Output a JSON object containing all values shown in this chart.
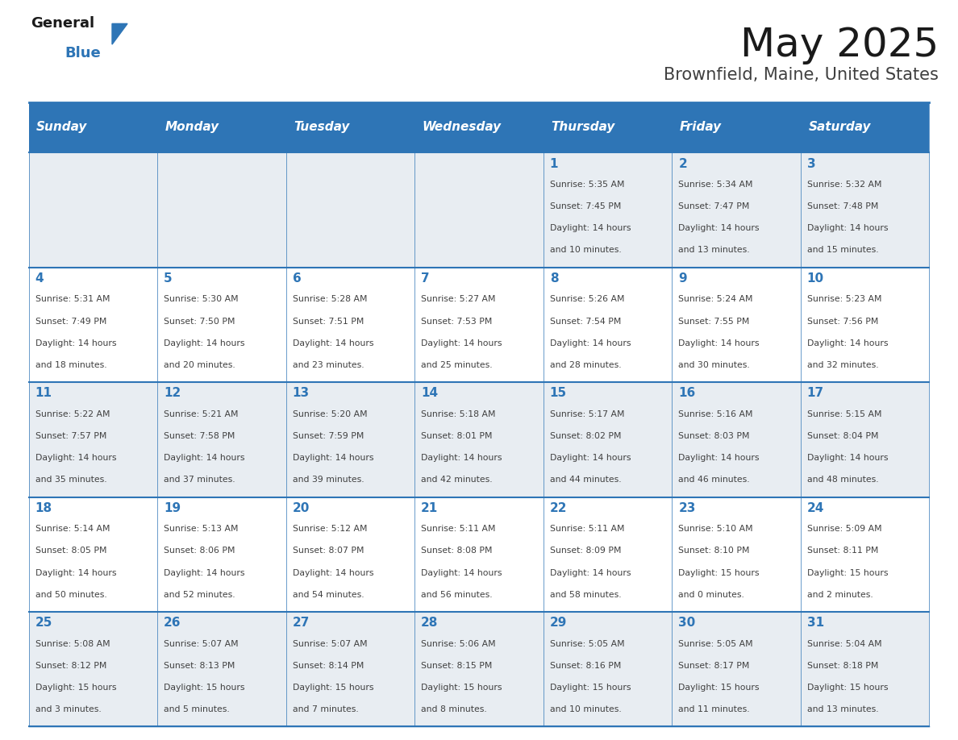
{
  "title": "May 2025",
  "subtitle": "Brownfield, Maine, United States",
  "days_of_week": [
    "Sunday",
    "Monday",
    "Tuesday",
    "Wednesday",
    "Thursday",
    "Friday",
    "Saturday"
  ],
  "header_bg": "#2E75B6",
  "header_text": "#FFFFFF",
  "row1_bg": "#E8EDF2",
  "row2_bg": "#FFFFFF",
  "cell_border": "#2E75B6",
  "day_number_color": "#2E75B6",
  "info_text_color": "#404040",
  "title_color": "#1a1a1a",
  "subtitle_color": "#404040",
  "logo_general_color": "#1a1a1a",
  "logo_blue_color": "#2E75B6",
  "weeks": [
    {
      "days": [
        {
          "day": "",
          "info": ""
        },
        {
          "day": "",
          "info": ""
        },
        {
          "day": "",
          "info": ""
        },
        {
          "day": "",
          "info": ""
        },
        {
          "day": "1",
          "info": "Sunrise: 5:35 AM\nSunset: 7:45 PM\nDaylight: 14 hours\nand 10 minutes."
        },
        {
          "day": "2",
          "info": "Sunrise: 5:34 AM\nSunset: 7:47 PM\nDaylight: 14 hours\nand 13 minutes."
        },
        {
          "day": "3",
          "info": "Sunrise: 5:32 AM\nSunset: 7:48 PM\nDaylight: 14 hours\nand 15 minutes."
        }
      ]
    },
    {
      "days": [
        {
          "day": "4",
          "info": "Sunrise: 5:31 AM\nSunset: 7:49 PM\nDaylight: 14 hours\nand 18 minutes."
        },
        {
          "day": "5",
          "info": "Sunrise: 5:30 AM\nSunset: 7:50 PM\nDaylight: 14 hours\nand 20 minutes."
        },
        {
          "day": "6",
          "info": "Sunrise: 5:28 AM\nSunset: 7:51 PM\nDaylight: 14 hours\nand 23 minutes."
        },
        {
          "day": "7",
          "info": "Sunrise: 5:27 AM\nSunset: 7:53 PM\nDaylight: 14 hours\nand 25 minutes."
        },
        {
          "day": "8",
          "info": "Sunrise: 5:26 AM\nSunset: 7:54 PM\nDaylight: 14 hours\nand 28 minutes."
        },
        {
          "day": "9",
          "info": "Sunrise: 5:24 AM\nSunset: 7:55 PM\nDaylight: 14 hours\nand 30 minutes."
        },
        {
          "day": "10",
          "info": "Sunrise: 5:23 AM\nSunset: 7:56 PM\nDaylight: 14 hours\nand 32 minutes."
        }
      ]
    },
    {
      "days": [
        {
          "day": "11",
          "info": "Sunrise: 5:22 AM\nSunset: 7:57 PM\nDaylight: 14 hours\nand 35 minutes."
        },
        {
          "day": "12",
          "info": "Sunrise: 5:21 AM\nSunset: 7:58 PM\nDaylight: 14 hours\nand 37 minutes."
        },
        {
          "day": "13",
          "info": "Sunrise: 5:20 AM\nSunset: 7:59 PM\nDaylight: 14 hours\nand 39 minutes."
        },
        {
          "day": "14",
          "info": "Sunrise: 5:18 AM\nSunset: 8:01 PM\nDaylight: 14 hours\nand 42 minutes."
        },
        {
          "day": "15",
          "info": "Sunrise: 5:17 AM\nSunset: 8:02 PM\nDaylight: 14 hours\nand 44 minutes."
        },
        {
          "day": "16",
          "info": "Sunrise: 5:16 AM\nSunset: 8:03 PM\nDaylight: 14 hours\nand 46 minutes."
        },
        {
          "day": "17",
          "info": "Sunrise: 5:15 AM\nSunset: 8:04 PM\nDaylight: 14 hours\nand 48 minutes."
        }
      ]
    },
    {
      "days": [
        {
          "day": "18",
          "info": "Sunrise: 5:14 AM\nSunset: 8:05 PM\nDaylight: 14 hours\nand 50 minutes."
        },
        {
          "day": "19",
          "info": "Sunrise: 5:13 AM\nSunset: 8:06 PM\nDaylight: 14 hours\nand 52 minutes."
        },
        {
          "day": "20",
          "info": "Sunrise: 5:12 AM\nSunset: 8:07 PM\nDaylight: 14 hours\nand 54 minutes."
        },
        {
          "day": "21",
          "info": "Sunrise: 5:11 AM\nSunset: 8:08 PM\nDaylight: 14 hours\nand 56 minutes."
        },
        {
          "day": "22",
          "info": "Sunrise: 5:11 AM\nSunset: 8:09 PM\nDaylight: 14 hours\nand 58 minutes."
        },
        {
          "day": "23",
          "info": "Sunrise: 5:10 AM\nSunset: 8:10 PM\nDaylight: 15 hours\nand 0 minutes."
        },
        {
          "day": "24",
          "info": "Sunrise: 5:09 AM\nSunset: 8:11 PM\nDaylight: 15 hours\nand 2 minutes."
        }
      ]
    },
    {
      "days": [
        {
          "day": "25",
          "info": "Sunrise: 5:08 AM\nSunset: 8:12 PM\nDaylight: 15 hours\nand 3 minutes."
        },
        {
          "day": "26",
          "info": "Sunrise: 5:07 AM\nSunset: 8:13 PM\nDaylight: 15 hours\nand 5 minutes."
        },
        {
          "day": "27",
          "info": "Sunrise: 5:07 AM\nSunset: 8:14 PM\nDaylight: 15 hours\nand 7 minutes."
        },
        {
          "day": "28",
          "info": "Sunrise: 5:06 AM\nSunset: 8:15 PM\nDaylight: 15 hours\nand 8 minutes."
        },
        {
          "day": "29",
          "info": "Sunrise: 5:05 AM\nSunset: 8:16 PM\nDaylight: 15 hours\nand 10 minutes."
        },
        {
          "day": "30",
          "info": "Sunrise: 5:05 AM\nSunset: 8:17 PM\nDaylight: 15 hours\nand 11 minutes."
        },
        {
          "day": "31",
          "info": "Sunrise: 5:04 AM\nSunset: 8:18 PM\nDaylight: 15 hours\nand 13 minutes."
        }
      ]
    }
  ]
}
